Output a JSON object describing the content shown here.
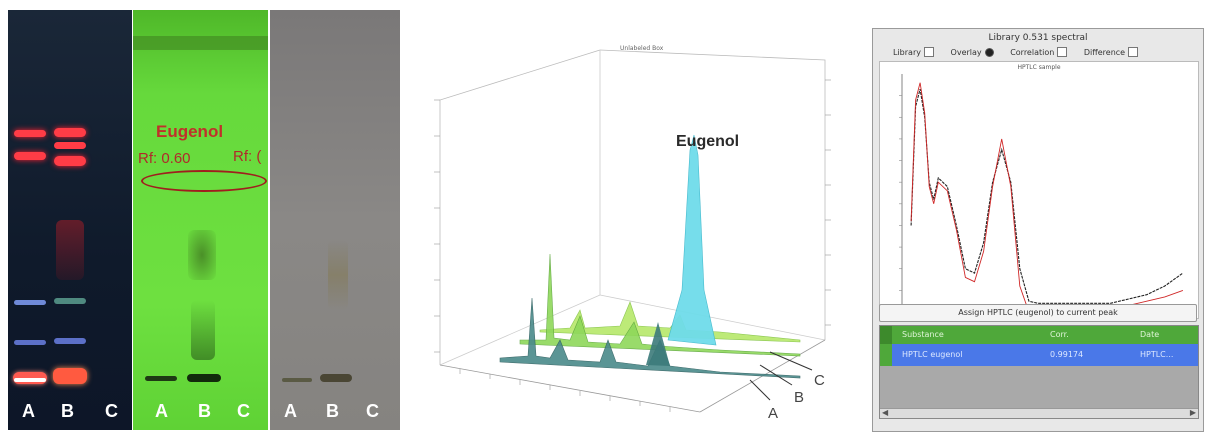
{
  "plate1": {
    "lanes": [
      "A",
      "B",
      "C"
    ]
  },
  "plate2": {
    "compound_label": "Eugenol",
    "rf_label_1": "Rf: 0.60",
    "rf_label_2": "Rf: (",
    "lanes": [
      "A",
      "B",
      "C"
    ]
  },
  "plate3": {
    "lanes": [
      "A",
      "B",
      "C"
    ]
  },
  "densitogram": {
    "top_label": "Unlabeled Box",
    "peak_label": "Eugenol",
    "track_labels": [
      "A",
      "B",
      "C"
    ]
  },
  "spectra_panel": {
    "title": "Library 0.531 spectral",
    "options": [
      {
        "label": "Library",
        "control": "checkbox"
      },
      {
        "label": "Overlay",
        "control": "radio"
      },
      {
        "label": "Correlation",
        "control": "checkbox"
      },
      {
        "label": "Difference",
        "control": "checkbox"
      }
    ],
    "chart_title": "HPTLC sample",
    "assign_button": "Assign HPTLC (eugenol) to current peak",
    "table": {
      "headers": [
        "Substance",
        "Corr.",
        "Date"
      ],
      "rows": [
        [
          "HPTLC eugenol",
          "0.99174",
          "HPTLC..."
        ]
      ]
    }
  },
  "chart_data": {
    "type": "line",
    "title": "HPTLC sample",
    "series": [
      {
        "x": [
          200,
          205,
          210,
          215,
          220,
          225,
          230,
          240,
          250,
          260,
          270,
          280,
          290,
          300,
          310,
          320,
          330,
          340,
          350,
          360,
          380,
          400,
          420,
          440,
          460,
          480,
          500
        ],
        "y": [
          40,
          95,
          103,
          90,
          60,
          52,
          62,
          58,
          40,
          20,
          18,
          32,
          60,
          75,
          60,
          20,
          5,
          4,
          4,
          4,
          4,
          4,
          4,
          6,
          8,
          12,
          18
        ]
      },
      {
        "x": [
          200,
          205,
          210,
          215,
          220,
          225,
          230,
          240,
          250,
          260,
          270,
          280,
          290,
          300,
          310,
          320,
          330,
          340,
          350,
          360,
          380,
          400,
          420,
          440,
          460,
          480,
          500
        ],
        "y": [
          42,
          98,
          106,
          92,
          58,
          50,
          60,
          56,
          38,
          16,
          14,
          28,
          58,
          80,
          58,
          12,
          0,
          0,
          0,
          1,
          1,
          1,
          2,
          3,
          5,
          7,
          10
        ]
      }
    ],
    "xlim": [
      190,
      510
    ],
    "ylim": [
      0,
      110
    ]
  }
}
